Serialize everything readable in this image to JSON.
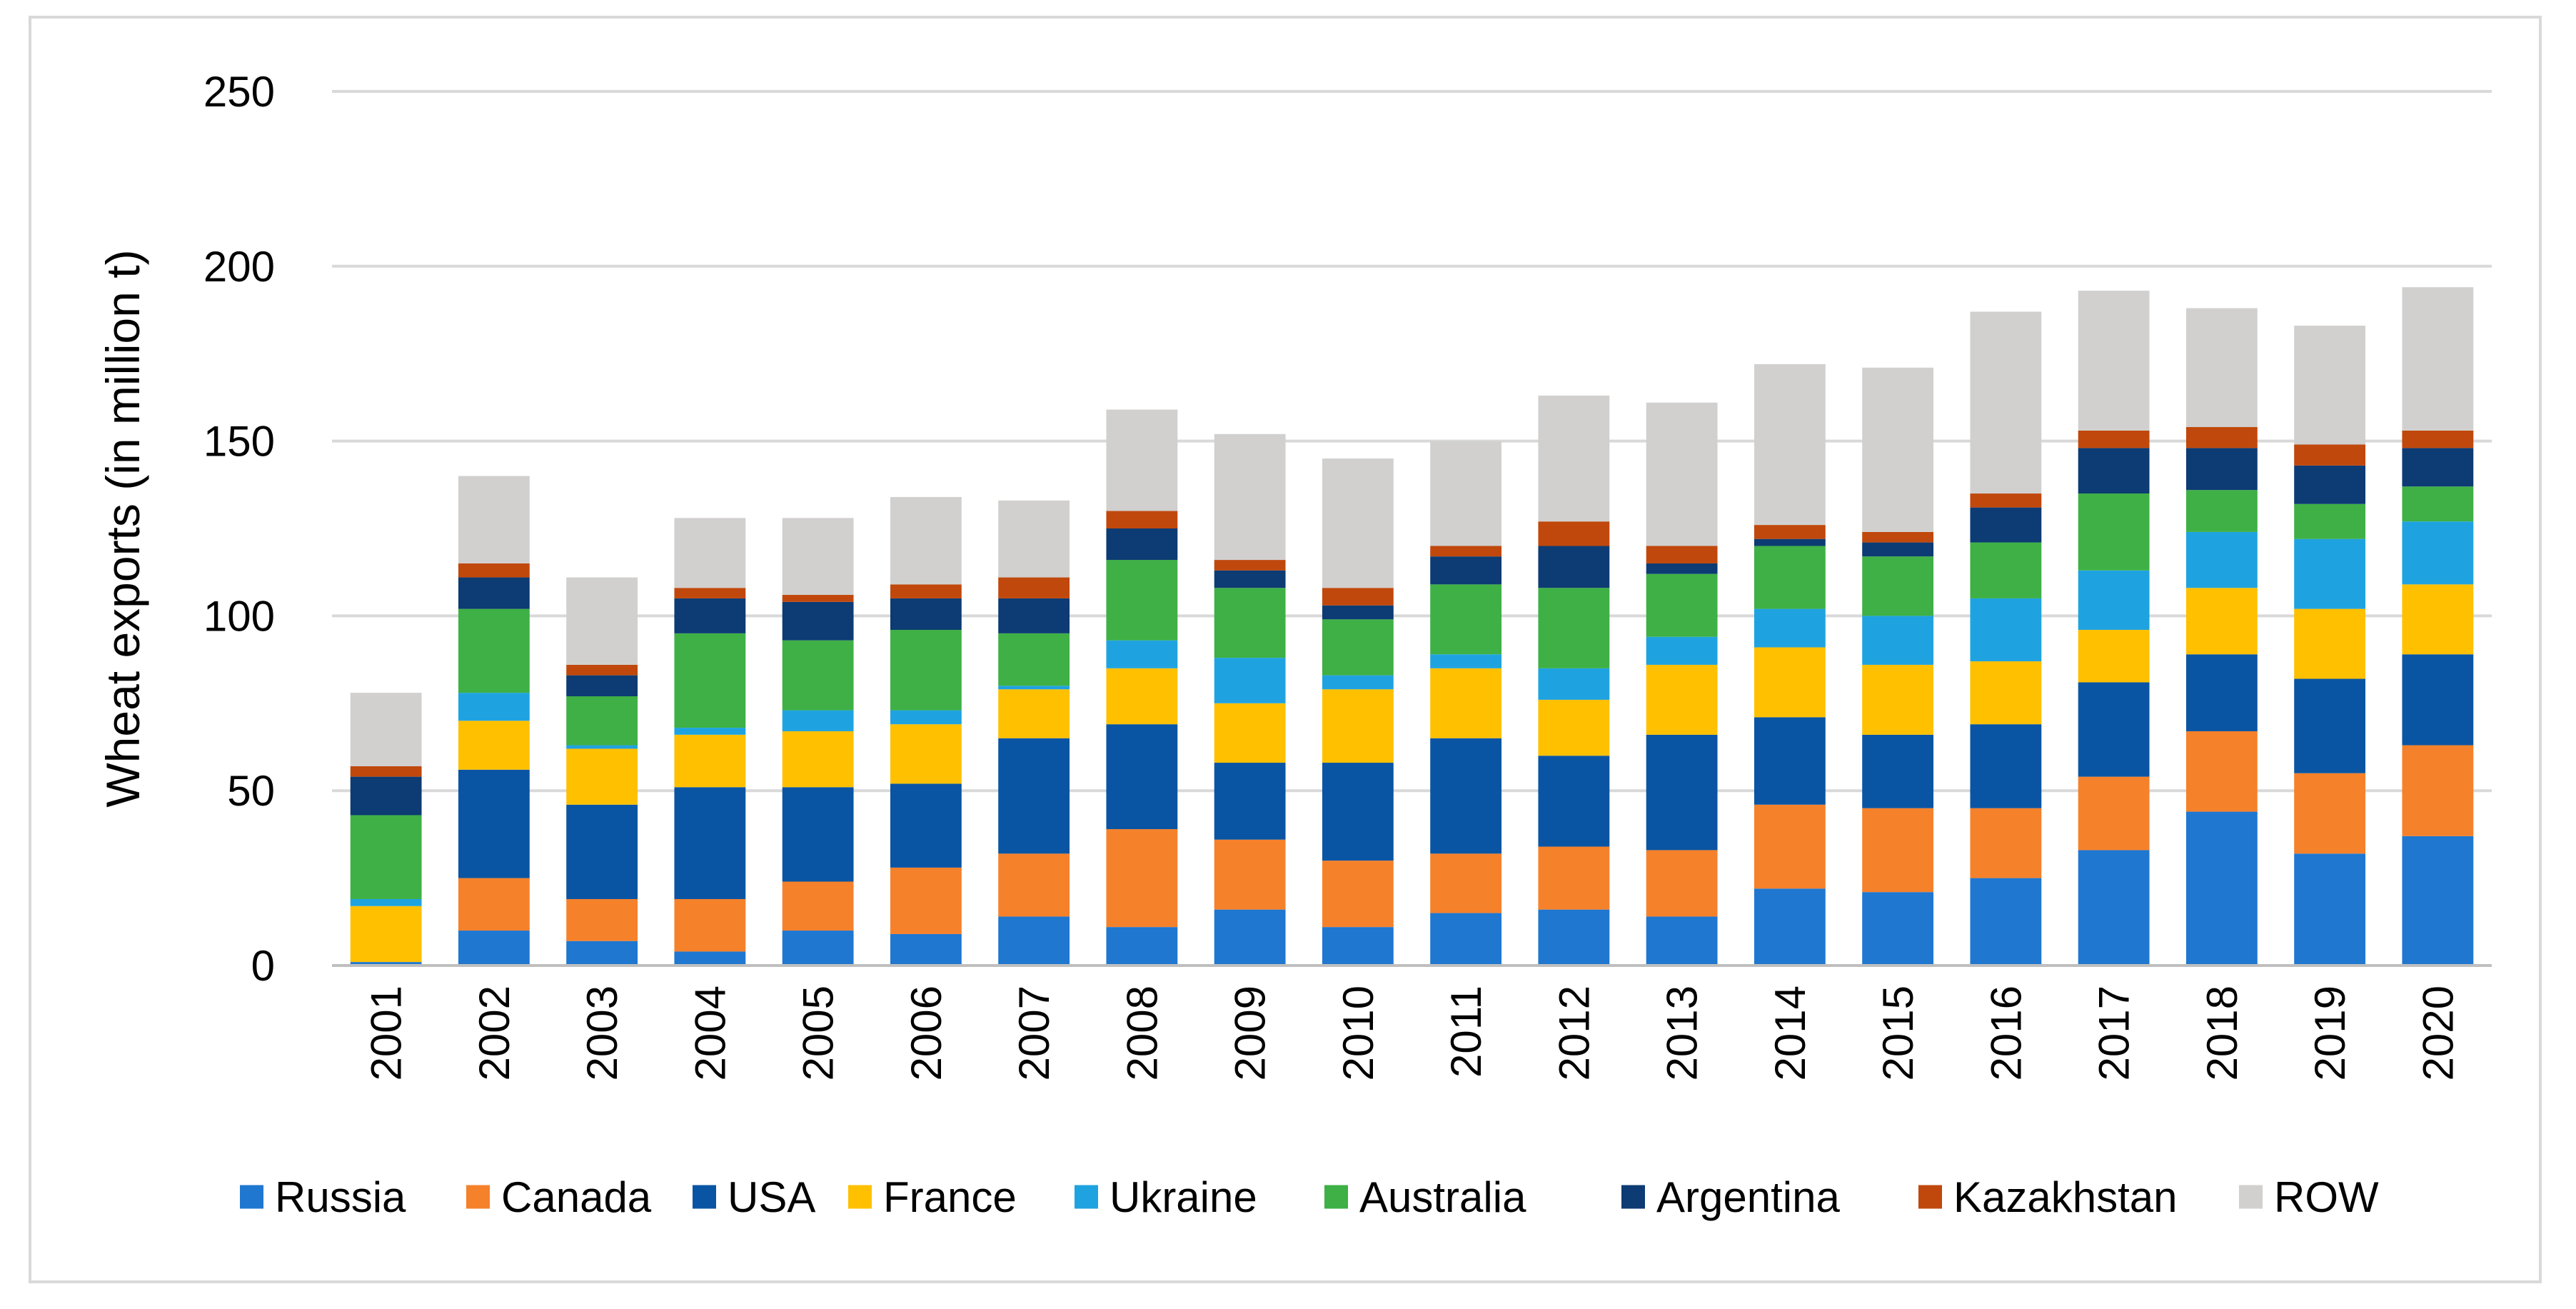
{
  "chart_data": {
    "type": "bar",
    "stacked": true,
    "title": "",
    "xlabel": "",
    "ylabel": "Wheat exports (in million t)",
    "ylim": [
      0,
      250
    ],
    "yticks": [
      0,
      50,
      100,
      150,
      200,
      250
    ],
    "grid": true,
    "legend_position": "bottom",
    "categories": [
      "2001",
      "2002",
      "2003",
      "2004",
      "2005",
      "2006",
      "2007",
      "2008",
      "2009",
      "2010",
      "2011",
      "2012",
      "2013",
      "2014",
      "2015",
      "2016",
      "2017",
      "2018",
      "2019",
      "2020"
    ],
    "series": [
      {
        "name": "Russia",
        "color": "#1f77d0",
        "values": [
          1,
          10,
          7,
          4,
          10,
          9,
          14,
          11,
          16,
          11,
          15,
          16,
          14,
          22,
          21,
          25,
          33,
          44,
          32,
          37
        ]
      },
      {
        "name": "Canada",
        "color": "#f5812b",
        "values": [
          0,
          15,
          12,
          15,
          14,
          19,
          18,
          28,
          20,
          19,
          17,
          18,
          19,
          24,
          24,
          20,
          21,
          23,
          23,
          26
        ]
      },
      {
        "name": "USA",
        "color": "#0a55a3",
        "values": [
          0,
          31,
          27,
          32,
          27,
          24,
          33,
          30,
          22,
          28,
          33,
          26,
          33,
          25,
          21,
          24,
          27,
          22,
          27,
          26
        ]
      },
      {
        "name": "France",
        "color": "#ffc000",
        "values": [
          16,
          14,
          16,
          15,
          16,
          17,
          14,
          16,
          17,
          21,
          20,
          16,
          20,
          20,
          20,
          18,
          15,
          19,
          20,
          20
        ]
      },
      {
        "name": "Ukraine",
        "color": "#1fa3e0",
        "values": [
          2,
          8,
          1,
          2,
          6,
          4,
          1,
          8,
          13,
          4,
          4,
          9,
          8,
          11,
          14,
          18,
          17,
          16,
          20,
          18
        ]
      },
      {
        "name": "Australia",
        "color": "#3eb045",
        "values": [
          24,
          24,
          14,
          27,
          20,
          23,
          15,
          23,
          20,
          16,
          20,
          23,
          18,
          18,
          17,
          16,
          22,
          12,
          10,
          10
        ]
      },
      {
        "name": "Argentina",
        "color": "#0d3b73",
        "values": [
          11,
          9,
          6,
          10,
          11,
          9,
          10,
          9,
          5,
          4,
          8,
          12,
          3,
          2,
          4,
          10,
          13,
          12,
          11,
          11
        ]
      },
      {
        "name": "Kazakhstan",
        "color": "#c0480c",
        "values": [
          3,
          4,
          3,
          3,
          2,
          4,
          6,
          5,
          3,
          5,
          3,
          7,
          5,
          4,
          3,
          4,
          5,
          6,
          6,
          5
        ]
      },
      {
        "name": "ROW",
        "color": "#d1d0cf",
        "values": [
          21,
          25,
          25,
          20,
          22,
          25,
          22,
          29,
          36,
          37,
          30,
          36,
          41,
          46,
          47,
          52,
          40,
          34,
          34,
          41
        ]
      }
    ]
  }
}
